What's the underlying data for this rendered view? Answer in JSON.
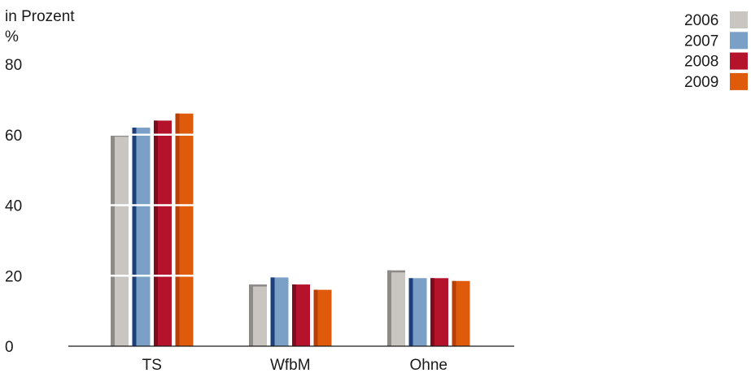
{
  "chart_data": {
    "type": "bar",
    "ylabel_line1": "in Prozent",
    "ylabel_line2": "%",
    "categories": [
      "TS",
      "WfbM",
      "Ohne"
    ],
    "series": [
      {
        "name": "2006",
        "color": "#c9c5c0",
        "shade": "#8e8a87",
        "values": [
          60,
          17.5,
          21.5
        ]
      },
      {
        "name": "2007",
        "color": "#7aa0c8",
        "shade": "#1d3f7a",
        "values": [
          62,
          19.5,
          19.3
        ]
      },
      {
        "name": "2008",
        "color": "#b5132b",
        "shade": "#7a0e1e",
        "values": [
          64,
          17.5,
          19.3
        ]
      },
      {
        "name": "2009",
        "color": "#e05a0c",
        "shade": "#b6400a",
        "values": [
          66,
          16,
          18.5
        ]
      }
    ],
    "ylim": [
      0,
      80
    ],
    "yticks": [
      0,
      20,
      40,
      60,
      80
    ],
    "gridlines": [
      20,
      40,
      60
    ],
    "legend_position": "top-right"
  }
}
